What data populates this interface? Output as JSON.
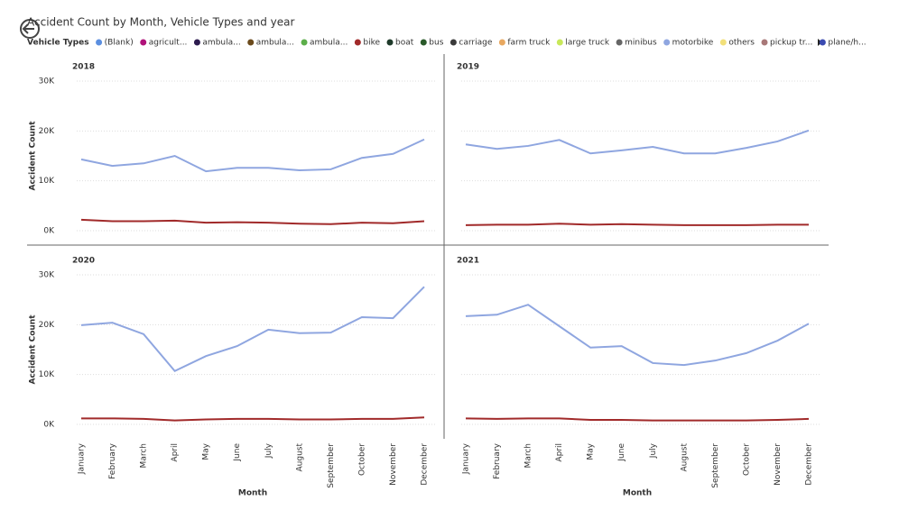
{
  "chart_data": {
    "type": "line",
    "title": "Accident Count by Month, Vehicle Types and year",
    "legend_title": "Vehicle Types",
    "x_label": "Month",
    "y_label": "Accident Count",
    "facets": [
      "2018",
      "2019",
      "2020",
      "2021"
    ],
    "categories": [
      "January",
      "February",
      "March",
      "April",
      "May",
      "June",
      "July",
      "August",
      "September",
      "October",
      "November",
      "December"
    ],
    "ylim": [
      0,
      30000
    ],
    "yticks": [
      {
        "value": 0,
        "label": "0K"
      },
      {
        "value": 10000,
        "label": "10K"
      },
      {
        "value": 20000,
        "label": "20K"
      },
      {
        "value": 30000,
        "label": "30K"
      }
    ],
    "grid": true,
    "series": [
      {
        "name": "(Blank)",
        "color": "#5b8fe0"
      },
      {
        "name": "agricult...",
        "color": "#b0127a"
      },
      {
        "name": "ambula...",
        "color": "#2d1b4f"
      },
      {
        "name": "ambula...",
        "color": "#6b4a1c"
      },
      {
        "name": "ambula...",
        "color": "#5cae4a"
      },
      {
        "name": "bike",
        "color": "#a12a2a",
        "values": [
          [
            2200,
            1900,
            1900,
            2000,
            1600,
            1700,
            1600,
            1400,
            1300,
            1600,
            1500,
            1900
          ],
          [
            1100,
            1200,
            1200,
            1400,
            1200,
            1300,
            1200,
            1100,
            1100,
            1100,
            1200,
            1200
          ],
          [
            1200,
            1200,
            1100,
            800,
            1000,
            1100,
            1100,
            1000,
            1000,
            1100,
            1100,
            1400
          ],
          [
            1200,
            1100,
            1200,
            1200,
            900,
            900,
            800,
            800,
            800,
            800,
            900,
            1100
          ]
        ]
      },
      {
        "name": "boat",
        "color": "#1f3a2a"
      },
      {
        "name": "bus",
        "color": "#2a5a2a"
      },
      {
        "name": "carriage",
        "color": "#3a3a3a"
      },
      {
        "name": "farm truck",
        "color": "#e8a860"
      },
      {
        "name": "large truck",
        "color": "#c8e85a"
      },
      {
        "name": "minibus",
        "color": "#666666"
      },
      {
        "name": "motorbike",
        "color": "#8fa6e0",
        "values": [
          [
            14300,
            13000,
            13500,
            15000,
            11900,
            12600,
            12600,
            12100,
            12300,
            14600,
            15400,
            18300
          ],
          [
            17300,
            16400,
            17000,
            18200,
            15500,
            16100,
            16800,
            15500,
            15500,
            16600,
            17900,
            20100
          ],
          [
            19900,
            20400,
            18100,
            10700,
            13700,
            15700,
            19000,
            18300,
            18400,
            21500,
            21300,
            27600
          ],
          [
            21700,
            22000,
            24000,
            19700,
            15400,
            15700,
            12300,
            11900,
            12800,
            14300,
            16800,
            20200
          ]
        ]
      },
      {
        "name": "others",
        "color": "#f2e07a"
      },
      {
        "name": "pickup tr...",
        "color": "#a87878"
      },
      {
        "name": "plane/h...",
        "color": "#3a4ab0"
      }
    ]
  }
}
